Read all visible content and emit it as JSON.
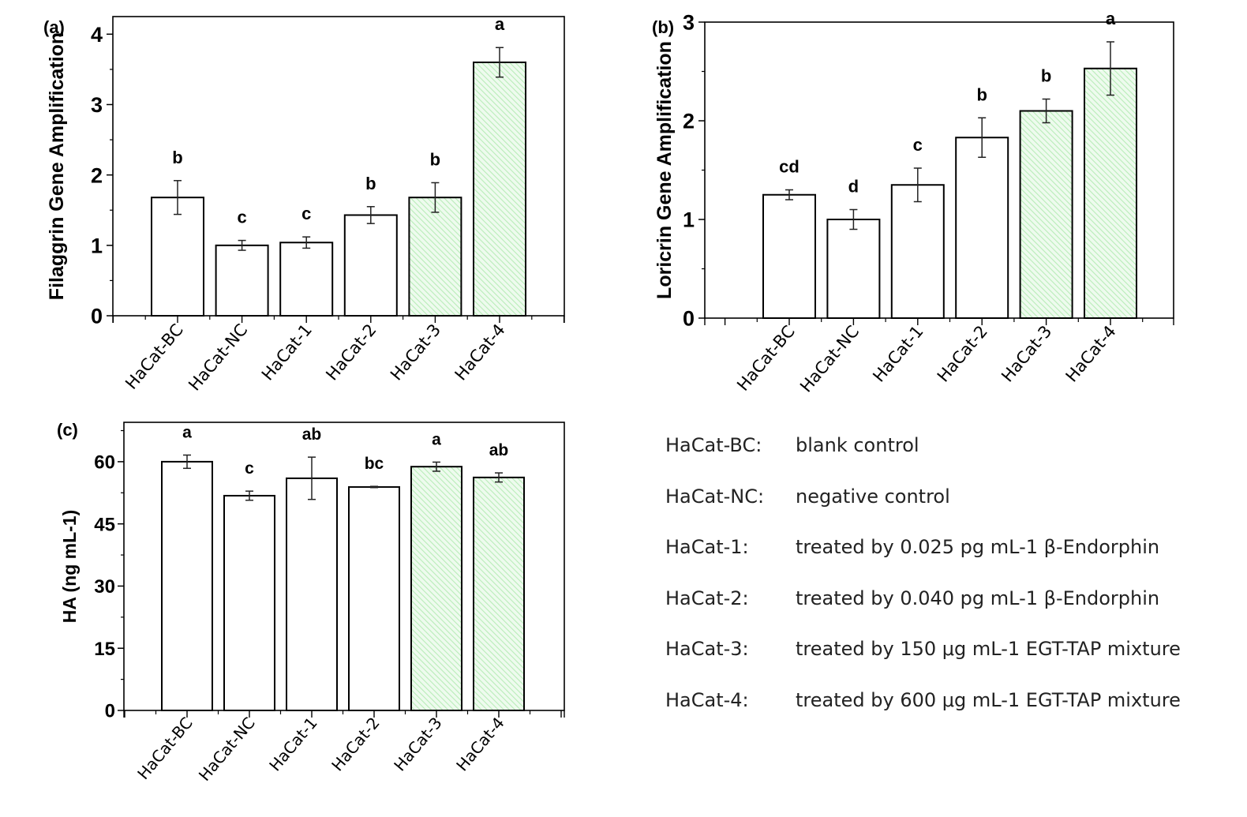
{
  "chart_data": [
    {
      "type": "bar",
      "panel_label": "(a)",
      "title": "",
      "xlabel": "",
      "ylabel": "Filaggrin Gene Amplification",
      "categories": [
        "HaCat-BC",
        "HaCat-NC",
        "HaCat-1",
        "HaCat-2",
        "HaCat-3",
        "HaCat-4"
      ],
      "values": [
        1.68,
        1.0,
        1.04,
        1.43,
        1.68,
        3.6
      ],
      "error": [
        0.24,
        0.07,
        0.08,
        0.12,
        0.21,
        0.21
      ],
      "significance": [
        "b",
        "c",
        "c",
        "b",
        "b",
        "a"
      ],
      "hatched": [
        false,
        false,
        false,
        false,
        true,
        true
      ],
      "ylim": [
        0,
        4.25
      ],
      "yticks": [
        0,
        1,
        2,
        3,
        4
      ],
      "ytick_labels": [
        "0",
        "1",
        "2",
        "3",
        "4"
      ],
      "grid": false
    },
    {
      "type": "bar",
      "panel_label": "(b)",
      "title": "",
      "xlabel": "",
      "ylabel": "Loricrin Gene Amplification",
      "categories": [
        "HaCat-BC",
        "HaCat-NC",
        "HaCat-1",
        "HaCat-2",
        "HaCat-3",
        "HaCat-4"
      ],
      "values": [
        1.25,
        1.0,
        1.35,
        1.83,
        2.1,
        2.53
      ],
      "error": [
        0.05,
        0.1,
        0.17,
        0.2,
        0.12,
        0.27
      ],
      "significance": [
        "cd",
        "d",
        "c",
        "b",
        "b",
        "a"
      ],
      "hatched": [
        false,
        false,
        false,
        false,
        true,
        true
      ],
      "ylim": [
        0,
        3
      ],
      "yticks": [
        0,
        1,
        2,
        3
      ],
      "ytick_labels": [
        "0",
        "1",
        "2",
        "3"
      ],
      "grid": false
    },
    {
      "type": "bar",
      "panel_label": "(c)",
      "title": "",
      "xlabel": "",
      "ylabel": "HA (ng mL-1)",
      "categories": [
        "HaCat-BC",
        "HaCat-NC",
        "HaCat-1",
        "HaCat-2",
        "HaCat-3",
        "HaCat-4"
      ],
      "values": [
        60.0,
        51.8,
        56.0,
        53.9,
        58.8,
        56.2
      ],
      "error": [
        1.6,
        1.1,
        5.1,
        0.15,
        1.1,
        1.1
      ],
      "significance": [
        "a",
        "c",
        "ab",
        "bc",
        "a",
        "ab"
      ],
      "hatched": [
        false,
        false,
        false,
        false,
        true,
        true
      ],
      "ylim": [
        0,
        69.5
      ],
      "yticks": [
        0,
        15,
        30,
        45,
        60
      ],
      "ytick_labels": [
        "0",
        "15",
        "30",
        "45",
        "60"
      ],
      "grid": false
    }
  ],
  "colors": {
    "hatch_fill": "#eefbee",
    "hatch_line": "#b9ecb9",
    "bar_stroke": "#000000",
    "plain_fill": "#ffffff"
  },
  "legend": {
    "items": [
      {
        "key": "HaCat-BC:",
        "desc": "blank control"
      },
      {
        "key": "HaCat-NC:",
        "desc": "negative control"
      },
      {
        "key": "HaCat-1:",
        "desc": "treated by 0.025 pg mL-1 β-Endorphin"
      },
      {
        "key": "HaCat-2:",
        "desc": "treated by 0.040 pg mL-1 β-Endorphin"
      },
      {
        "key": "HaCat-3:",
        "desc": "treated by 150 μg mL-1 EGT-TAP mixture"
      },
      {
        "key": "HaCat-4:",
        "desc": "treated by 600 μg mL-1 EGT-TAP mixture"
      }
    ]
  }
}
